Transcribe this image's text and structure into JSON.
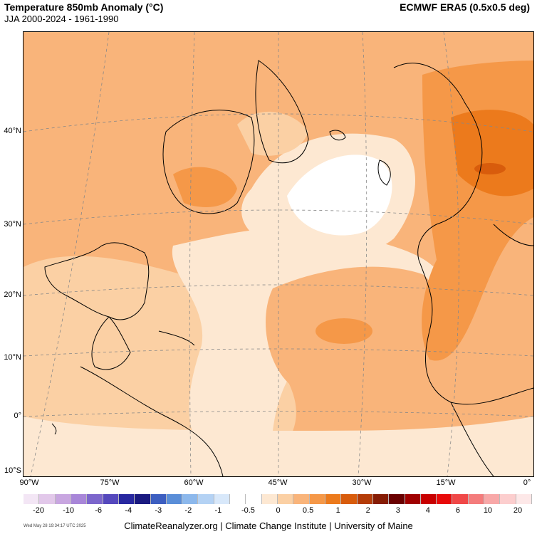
{
  "title": "Temperature 850mb Anomaly (°C)",
  "subtitle": "JJA 2000-2024 - 1961-1990",
  "source": "ECMWF ERA5 (0.5x0.5 deg)",
  "lat_labels": [
    "40°N",
    "30°N",
    "20°N",
    "10°N",
    "0°",
    "10°S"
  ],
  "lon_labels": [
    "90°W",
    "75°W",
    "60°W",
    "45°W",
    "30°W",
    "15°W",
    "0°"
  ],
  "colorbar": {
    "ticks": [
      "-20",
      "-10",
      "-6",
      "-4",
      "-3",
      "-2",
      "-1",
      "-0.5",
      "0",
      "0.5",
      "1",
      "2",
      "3",
      "4",
      "6",
      "10",
      "20"
    ],
    "colors": [
      "#f3e6f5",
      "#e2c8ea",
      "#c8a6e0",
      "#a886d8",
      "#7c66cc",
      "#5548bd",
      "#2828a0",
      "#1a1a80",
      "#3c5ec0",
      "#5a8ed8",
      "#8cb8ec",
      "#b4d2f4",
      "#d8e8fa",
      "#ffffff",
      "#ffffff",
      "#fde8d2",
      "#fbd0a4",
      "#f9b47a",
      "#f59848",
      "#ec7a1c",
      "#d85c0c",
      "#b43c08",
      "#861c04",
      "#6a0000",
      "#a00000",
      "#c80000",
      "#e80a0a",
      "#f04848",
      "#f47c7c",
      "#f8a8a8",
      "#fccece",
      "#fde8e8"
    ]
  },
  "credit": "ClimateReanalyzer.org | Climate Change Institute | University of Maine",
  "timestamp": "Wed May 28 19:34:17 UTC 2025",
  "palette": {
    "light": "#fde8d2",
    "pale": "#fbd0a4",
    "mid": "#f9b47a",
    "strong": "#f59848",
    "deep": "#ec7a1c",
    "dark": "#d85c0c"
  }
}
